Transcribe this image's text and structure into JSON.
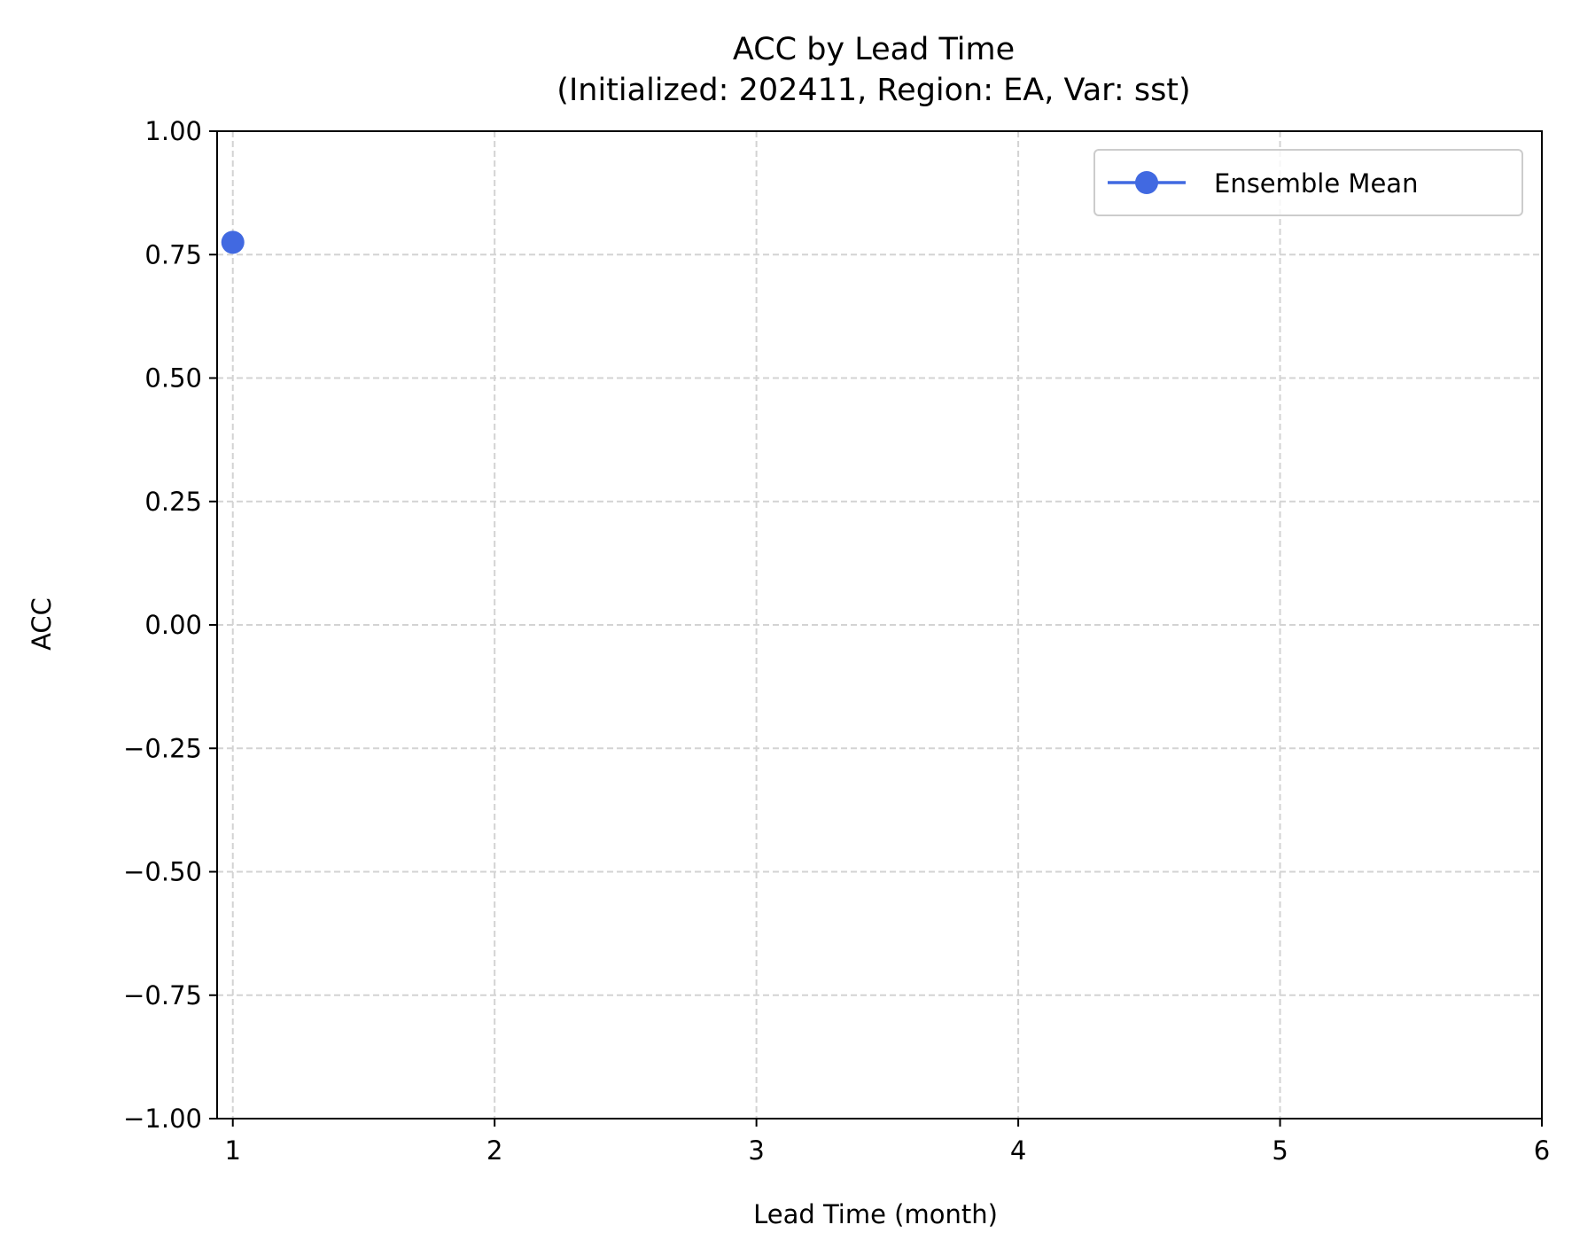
{
  "chart_data": {
    "type": "line",
    "title": "ACC by Lead Time",
    "subtitle": "(Initialized: 202411, Region: EA, Var: sst)",
    "xlabel": "Lead Time (month)",
    "ylabel": "ACC",
    "xlim": [
      0.94,
      6
    ],
    "ylim": [
      -1.0,
      1.0
    ],
    "x_ticks": [
      1,
      2,
      3,
      4,
      5,
      6
    ],
    "x_tick_labels": [
      "1",
      "2",
      "3",
      "4",
      "5",
      "6"
    ],
    "y_ticks": [
      1.0,
      0.75,
      0.5,
      0.25,
      0.0,
      -0.25,
      -0.5,
      -0.75,
      -1.0
    ],
    "y_tick_labels": [
      "1.00",
      "0.75",
      "0.50",
      "0.25",
      "0.00",
      "−0.25",
      "−0.50",
      "−0.75",
      "−1.00"
    ],
    "grid": true,
    "grid_style": "dashed",
    "legend_position": "top-right",
    "series": [
      {
        "name": "Ensemble Mean",
        "color": "#4169e1",
        "marker": "circle",
        "x": [
          1
        ],
        "y": [
          0.775
        ]
      }
    ]
  }
}
